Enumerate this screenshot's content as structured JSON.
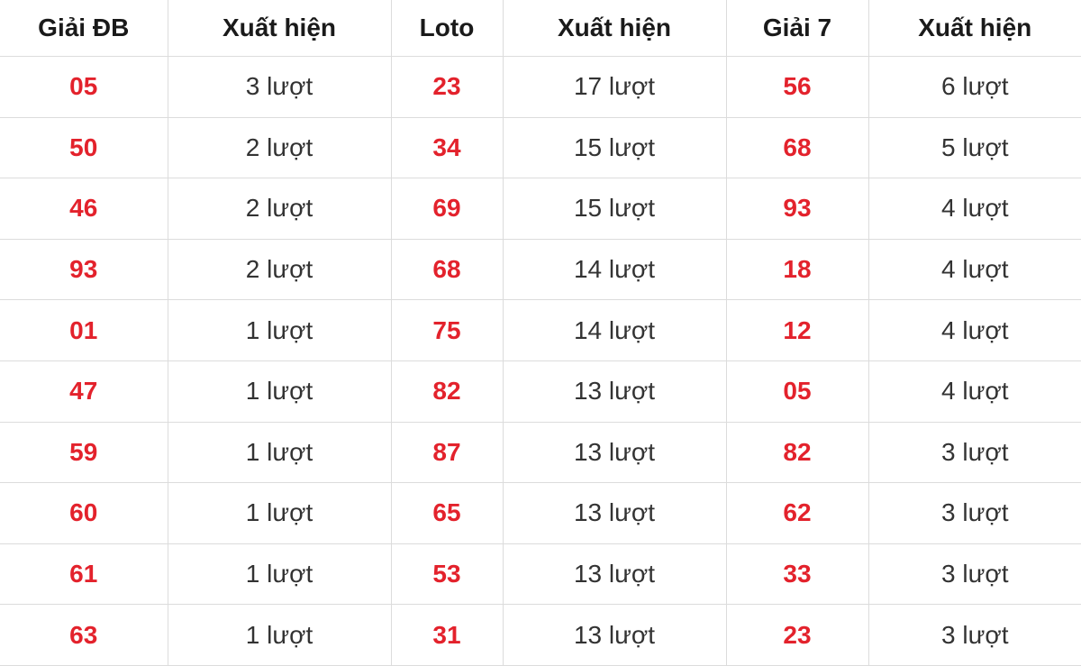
{
  "headers": [
    "Giải ĐB",
    "Xuất hiện",
    "Loto",
    "Xuất hiện",
    "Giải 7",
    "Xuất hiện"
  ],
  "accent_color": "#e3222c",
  "rows": [
    [
      "05",
      "3 lượt",
      "23",
      "17 lượt",
      "56",
      "6 lượt"
    ],
    [
      "50",
      "2 lượt",
      "34",
      "15 lượt",
      "68",
      "5 lượt"
    ],
    [
      "46",
      "2 lượt",
      "69",
      "15 lượt",
      "93",
      "4 lượt"
    ],
    [
      "93",
      "2 lượt",
      "68",
      "14 lượt",
      "18",
      "4 lượt"
    ],
    [
      "01",
      "1 lượt",
      "75",
      "14 lượt",
      "12",
      "4 lượt"
    ],
    [
      "47",
      "1 lượt",
      "82",
      "13 lượt",
      "05",
      "4 lượt"
    ],
    [
      "59",
      "1 lượt",
      "87",
      "13 lượt",
      "82",
      "3 lượt"
    ],
    [
      "60",
      "1 lượt",
      "65",
      "13 lượt",
      "62",
      "3 lượt"
    ],
    [
      "61",
      "1 lượt",
      "53",
      "13 lượt",
      "33",
      "3 lượt"
    ],
    [
      "63",
      "1 lượt",
      "31",
      "13 lượt",
      "23",
      "3 lượt"
    ]
  ]
}
